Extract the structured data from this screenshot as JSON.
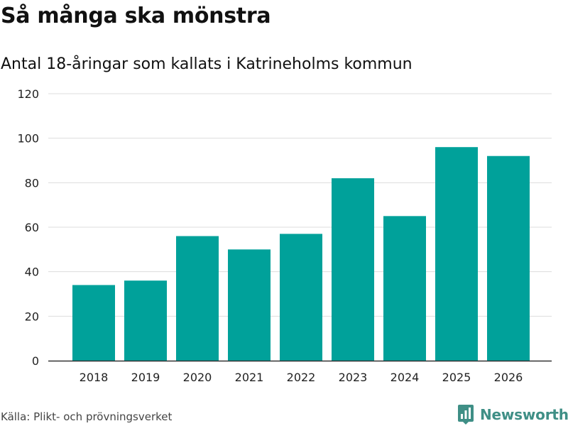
{
  "header": {
    "title": "Så många ska mönstra",
    "subtitle": "Antal 18-åringar som kallats i Katrineholms kommun"
  },
  "footer": {
    "source": "Källa: Plikt- och prövningsverket",
    "brand": "Newsworthy",
    "brand_color": "#3f8f86",
    "brand_icon": "bar-chart-badge-icon"
  },
  "chart_data": {
    "type": "bar",
    "title": "Så många ska mönstra",
    "subtitle": "Antal 18-åringar som kallats i Katrineholms kommun",
    "categories": [
      "2018",
      "2019",
      "2020",
      "2021",
      "2022",
      "2023",
      "2024",
      "2025",
      "2026"
    ],
    "values": [
      34,
      36,
      56,
      50,
      57,
      82,
      65,
      96,
      92
    ],
    "xlabel": "",
    "ylabel": "",
    "ylim": [
      0,
      120
    ],
    "yticks": [
      0,
      20,
      40,
      60,
      80,
      100,
      120
    ],
    "grid": true,
    "bar_color": "#00a19a",
    "grid_color": "#dddddd",
    "axis_color": "#333333"
  }
}
